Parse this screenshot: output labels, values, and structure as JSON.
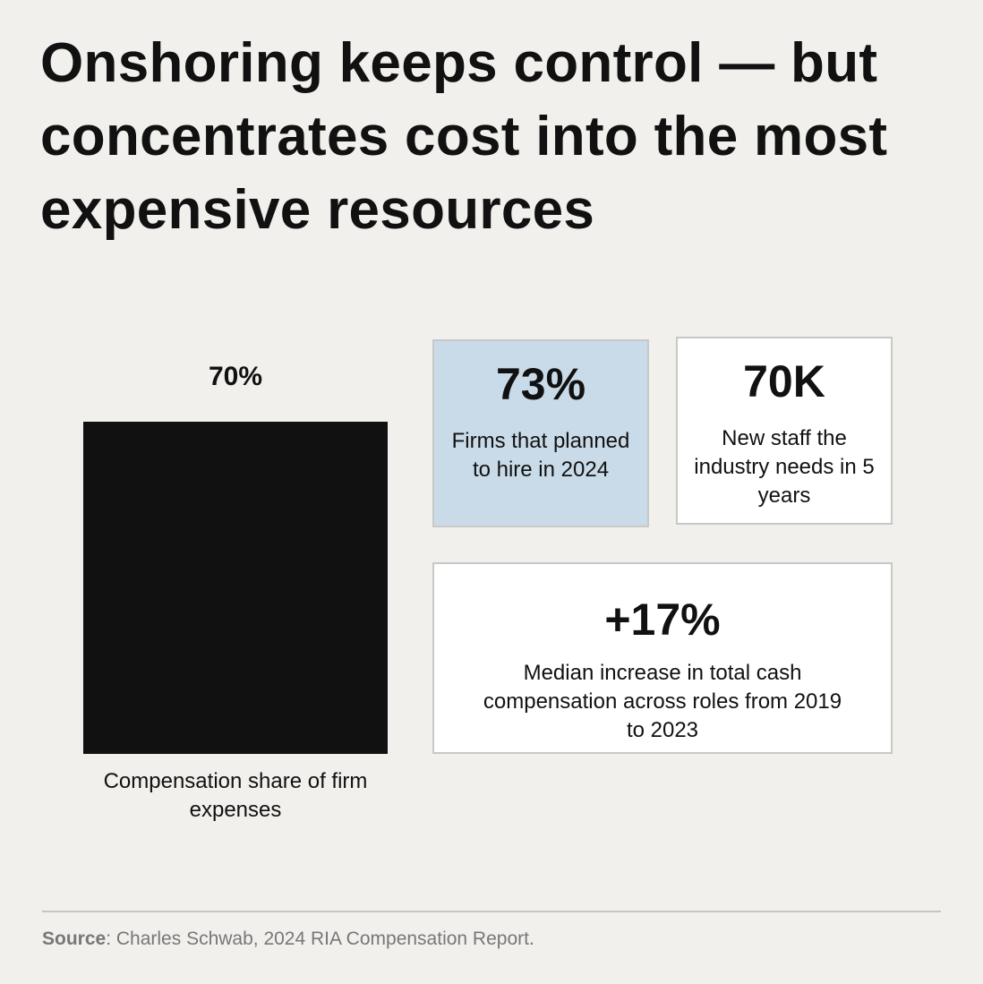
{
  "title": "Onshoring keeps control — but concentrates cost into the most expensive resources",
  "chart_data": {
    "type": "bar",
    "categories": [
      "Compensation share of firm expenses"
    ],
    "values": [
      70
    ],
    "data_labels": [
      "70%"
    ],
    "title": "",
    "xlabel": "",
    "ylabel": "",
    "ylim": [
      0,
      70
    ],
    "grid": false,
    "color": "#111111"
  },
  "stats": [
    {
      "value": "73%",
      "description": "Firms that planned to hire in 2024",
      "background": "#c9dbe8"
    },
    {
      "value": "70K",
      "description": "New staff the industry needs in 5 years",
      "background": "#ffffff"
    },
    {
      "value": "+17%",
      "description": "Median increase in total cash compensation across roles from 2019 to 2023",
      "background": "#ffffff"
    }
  ],
  "source": {
    "label": "Source",
    "text": ": Charles Schwab, 2024 RIA Compensation Report."
  }
}
